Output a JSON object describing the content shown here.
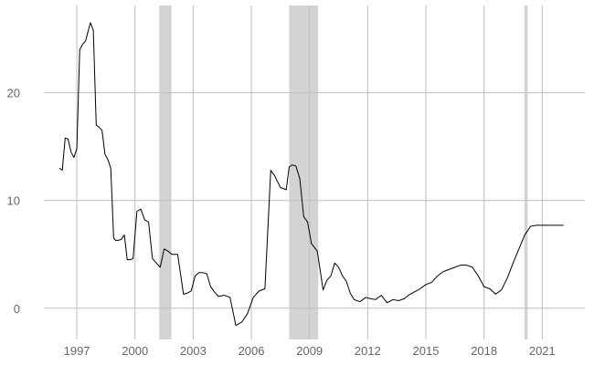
{
  "chart_data": {
    "type": "line",
    "title": "",
    "xlabel": "",
    "ylabel": "",
    "xlim": [
      1995.3,
      2023.2
    ],
    "ylim": [
      -2.9,
      28.1
    ],
    "grid": true,
    "legend": "none",
    "x_ticks": [
      1997,
      2000,
      2003,
      2006,
      2009,
      2012,
      2015,
      2018,
      2021
    ],
    "x_tick_labels": [
      "1997",
      "2000",
      "2003",
      "2006",
      "2009",
      "2012",
      "2015",
      "2018",
      "2021"
    ],
    "y_ticks": [
      0,
      10,
      20
    ],
    "y_tick_labels": [
      "0",
      "10",
      "20"
    ],
    "colors": {
      "line": "#000000",
      "grid": "#bfbfbf",
      "shading": "#d3d3d3",
      "tick_text": "#666666"
    },
    "shaded_periods": [
      [
        2001.25,
        2001.88
      ],
      [
        2007.95,
        2009.45
      ],
      [
        2020.08,
        2020.25
      ]
    ],
    "series": [
      {
        "x": [
          1996.1,
          1996.25,
          1996.4,
          1996.55,
          1996.7,
          1996.85,
          1997.0,
          1997.15,
          1997.3,
          1997.45,
          1997.55,
          1997.7,
          1997.85,
          1998.0,
          1998.15,
          1998.3,
          1998.45,
          1998.6,
          1998.75,
          1998.9,
          1999.0,
          1999.15,
          1999.3,
          1999.45,
          1999.6,
          1999.75,
          1999.9,
          2000.1,
          2000.3,
          2000.5,
          2000.7,
          2000.9,
          2001.1,
          2001.3,
          2001.5,
          2001.7,
          2001.9,
          2002.2,
          2002.5,
          2002.7,
          2002.9,
          2003.1,
          2003.3,
          2003.5,
          2003.7,
          2003.9,
          2004.1,
          2004.3,
          2004.6,
          2004.9,
          2005.2,
          2005.5,
          2005.8,
          2006.1,
          2006.4,
          2006.7,
          2007.0,
          2007.2,
          2007.5,
          2007.8,
          2007.95,
          2008.1,
          2008.3,
          2008.5,
          2008.7,
          2008.9,
          2009.1,
          2009.4,
          2009.7,
          2009.9,
          2010.1,
          2010.3,
          2010.5,
          2010.7,
          2010.9,
          2011.1,
          2011.3,
          2011.6,
          2011.9,
          2012.1,
          2012.4,
          2012.7,
          2013.0,
          2013.3,
          2013.6,
          2013.9,
          2014.1,
          2014.4,
          2014.7,
          2015.0,
          2015.3,
          2015.6,
          2015.9,
          2016.2,
          2016.5,
          2016.8,
          2017.1,
          2017.4,
          2017.7,
          2018.0,
          2018.3,
          2018.6,
          2018.9,
          2019.2,
          2019.5,
          2019.8,
          2020.1,
          2020.4,
          2020.7,
          2020.9,
          2021.1,
          2021.3,
          2021.5,
          2021.7,
          2021.9,
          2022.1
        ],
        "values": [
          13.0,
          12.8,
          15.8,
          15.7,
          14.5,
          14.0,
          14.8,
          24.0,
          24.5,
          24.8,
          25.5,
          26.5,
          25.8,
          17.0,
          16.8,
          16.5,
          14.3,
          13.8,
          13.0,
          6.5,
          6.3,
          6.3,
          6.4,
          6.8,
          4.5,
          4.5,
          4.6,
          9.0,
          9.2,
          8.2,
          8.0,
          4.6,
          4.2,
          3.8,
          5.5,
          5.3,
          5.0,
          5.0,
          1.3,
          1.4,
          1.6,
          3.0,
          3.3,
          3.3,
          3.2,
          2.0,
          1.5,
          1.1,
          1.2,
          1.0,
          -1.6,
          -1.3,
          -0.5,
          1.0,
          1.6,
          1.8,
          12.8,
          12.3,
          11.2,
          11.0,
          13.1,
          13.3,
          13.2,
          12.0,
          8.5,
          8.0,
          6.0,
          5.3,
          1.7,
          2.6,
          3.0,
          4.2,
          3.8,
          3.0,
          2.5,
          1.4,
          0.8,
          0.6,
          1.0,
          0.9,
          0.8,
          1.2,
          0.5,
          0.8,
          0.7,
          0.9,
          1.2,
          1.5,
          1.8,
          2.2,
          2.4,
          3.0,
          3.4,
          3.6,
          3.8,
          4.0,
          4.0,
          3.8,
          3.0,
          2.0,
          1.8,
          1.3,
          1.7,
          2.8,
          4.2,
          5.5,
          6.8,
          7.6,
          7.7,
          7.7,
          7.7,
          7.7,
          7.7,
          7.7,
          7.7,
          7.7
        ]
      }
    ]
  }
}
